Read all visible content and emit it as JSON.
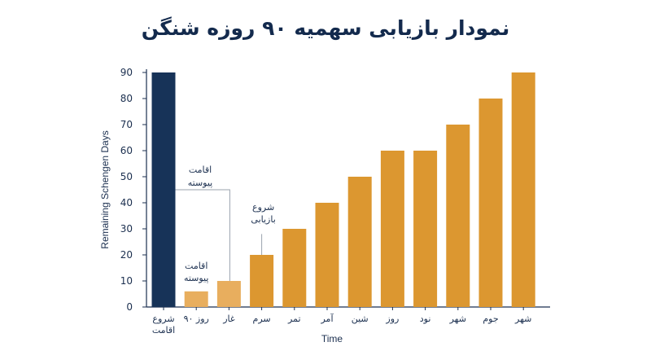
{
  "title": "نمودار بازیابی سهمیه ۹۰ روزه شنگن",
  "colors": {
    "first_bar": "#173358",
    "light_bar": "#e8ae5e",
    "bar": "#dc9730",
    "axis": "#1b2f4f",
    "connector": "#9aa3ae"
  },
  "chart_data": {
    "type": "bar",
    "title": "نمودار بازیابی سهمیه ۹۰ روزه شنگن",
    "xlabel": "Time",
    "ylabel": "Remaining Schengen Days",
    "ylim": [
      0,
      90
    ],
    "yticks": [
      0,
      10,
      20,
      30,
      40,
      50,
      60,
      70,
      80,
      90
    ],
    "categories": [
      [
        "شروع",
        "اقامت"
      ],
      [
        "روز ۹۰"
      ],
      [
        "غار"
      ],
      [
        "سرم"
      ],
      [
        "تمر"
      ],
      [
        "آمر"
      ],
      [
        "شین"
      ],
      [
        "روز"
      ],
      [
        "نود"
      ],
      [
        "شهر"
      ],
      [
        "جوم"
      ],
      [
        "شهر"
      ]
    ],
    "values": [
      90,
      6,
      10,
      20,
      30,
      40,
      50,
      60,
      60,
      70,
      80,
      90
    ],
    "bar_styles": [
      "first",
      "light",
      "light",
      "normal",
      "normal",
      "normal",
      "normal",
      "normal",
      "normal",
      "normal",
      "normal",
      "normal"
    ],
    "grid": false,
    "annotations": [
      {
        "lines": [
          "اقامت",
          "پیوسته"
        ],
        "target_index": 2,
        "value": 45
      },
      {
        "lines": [
          "اقامت",
          "پیوسته"
        ],
        "target_index": 1,
        "value": 16
      },
      {
        "lines": [
          "شروع",
          "بازیابی"
        ],
        "target_index": 3,
        "value": 28
      }
    ]
  }
}
